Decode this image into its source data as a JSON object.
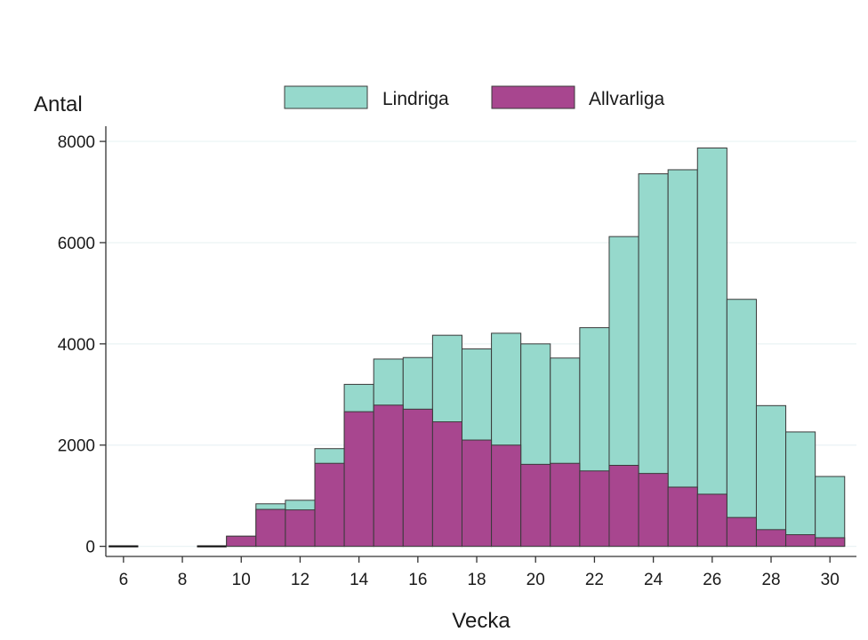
{
  "chart_data": {
    "type": "bar",
    "stacked": false,
    "overlay": true,
    "title": "",
    "xlabel": "Vecka",
    "ylabel": "Antal",
    "x": [
      6,
      9,
      10,
      11,
      12,
      13,
      14,
      15,
      16,
      17,
      18,
      19,
      20,
      21,
      22,
      23,
      24,
      25,
      26,
      27,
      28,
      29,
      30
    ],
    "series": [
      {
        "name": "Lindriga",
        "color": "#96d9cc",
        "values": [
          10,
          10,
          200,
          840,
          910,
          1930,
          3200,
          3700,
          3730,
          4170,
          3900,
          4210,
          4000,
          3720,
          4320,
          6120,
          7360,
          7440,
          7870,
          4880,
          2780,
          2260,
          1380
        ]
      },
      {
        "name": "Allvarliga",
        "color": "#a8468f",
        "values": [
          0,
          0,
          200,
          730,
          720,
          1640,
          2660,
          2790,
          2710,
          2460,
          2100,
          2000,
          1620,
          1640,
          1490,
          1600,
          1440,
          1170,
          1030,
          570,
          330,
          230,
          170
        ]
      }
    ],
    "xlim": [
      5.4,
      30.9
    ],
    "ylim": [
      -200,
      8300
    ],
    "x_ticks": [
      "6",
      "8",
      "10",
      "12",
      "14",
      "16",
      "18",
      "20",
      "22",
      "24",
      "26",
      "28",
      "30"
    ],
    "y_ticks": [
      "0",
      "2000",
      "4000",
      "6000",
      "8000"
    ],
    "grid": true,
    "legend_position": "top"
  }
}
